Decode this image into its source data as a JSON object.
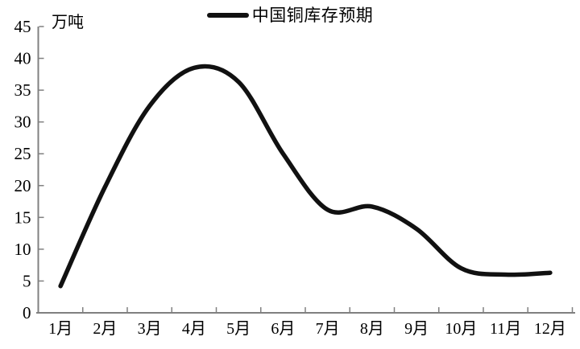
{
  "chart_data": {
    "type": "line",
    "title": "",
    "unit": "万吨",
    "xlabel": "",
    "ylabel": "万吨",
    "categories": [
      "1月",
      "2月",
      "3月",
      "4月",
      "5月",
      "6月",
      "7月",
      "8月",
      "9月",
      "10月",
      "11月",
      "12月"
    ],
    "series": [
      {
        "name": "中国铜库存预期",
        "values": [
          4.2,
          19.8,
          32.5,
          38.5,
          36.3,
          25.0,
          16.2,
          16.7,
          13.2,
          7.0,
          6.0,
          6.3
        ]
      }
    ],
    "ylim": [
      0,
      45
    ],
    "ytick_step": 5,
    "yticks": [
      0,
      5,
      10,
      15,
      20,
      25,
      30,
      35,
      40,
      45
    ],
    "grid": false,
    "legend_position": "top-center",
    "colors": {
      "line": "#111111",
      "axis": "#808080",
      "text": "#000000",
      "background": "#ffffff"
    }
  }
}
